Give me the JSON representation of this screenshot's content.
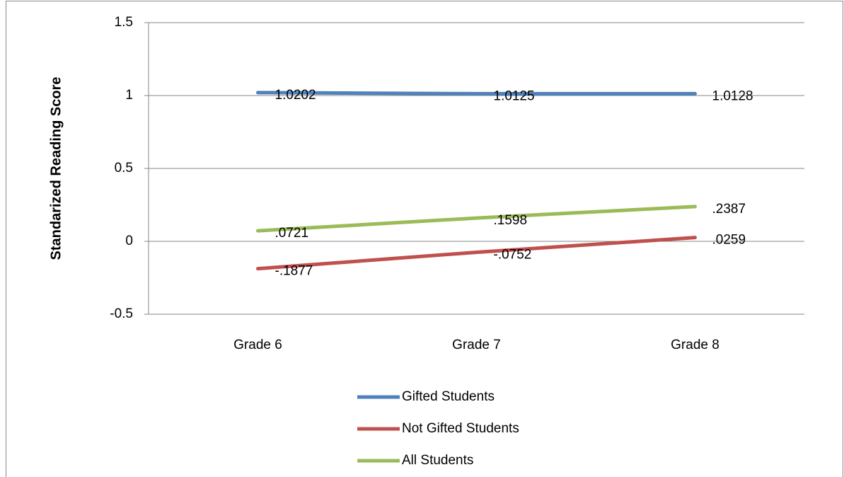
{
  "chart_data": {
    "type": "line",
    "y_label": "Standarized Reading Score",
    "categories": [
      "Grade 6",
      "Grade 7",
      "Grade 8"
    ],
    "series": [
      {
        "name": "Gifted Students",
        "color": "#4f81bd",
        "values": [
          1.0202,
          1.0125,
          1.0128
        ],
        "value_labels": [
          "1.0202",
          "1.0125",
          "1.0128"
        ]
      },
      {
        "name": "Not Gifted Students",
        "color": "#c0504d",
        "values": [
          -0.1877,
          -0.0752,
          0.0259
        ],
        "value_labels": [
          "-.1877",
          "-.0752",
          ".0259"
        ]
      },
      {
        "name": "All Students",
        "color": "#9bbb59",
        "values": [
          0.0721,
          0.1598,
          0.2387
        ],
        "value_labels": [
          ".0721",
          ".1598",
          ".2387"
        ]
      }
    ],
    "ylim": [
      -0.5,
      1.5
    ],
    "yticks": [
      -0.5,
      0,
      0.5,
      1,
      1.5
    ],
    "grid": true,
    "legend": "bottom"
  }
}
